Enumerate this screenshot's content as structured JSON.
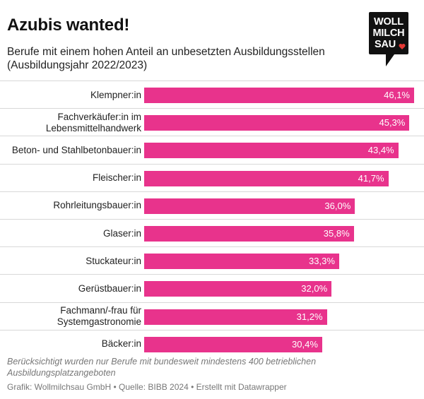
{
  "header": {
    "title": "Azubis wanted!",
    "subtitle": "Berufe mit einem hohen Anteil an unbesetzten Ausbildungsstellen (Ausbildungsjahr 2022/2023)"
  },
  "logo": {
    "line1": "WOLL",
    "line2": "MILCH",
    "line3": "SAU",
    "heart_color": "#e53935"
  },
  "colors": {
    "bar": "#e8338c",
    "bar_text": "#ffffff"
  },
  "chart_data": {
    "type": "bar",
    "orientation": "horizontal",
    "title": "Azubis wanted!",
    "subtitle": "Berufe mit einem hohen Anteil an unbesetzten Ausbildungsstellen (Ausbildungsjahr 2022/2023)",
    "categories": [
      "Klempner:in",
      "Fachverkäufer:in im Lebensmittelhandwerk",
      "Beton- und Stahlbetonbauer:in",
      "Fleischer:in",
      "Rohrleitungsbauer:in",
      "Glaser:in",
      "Stuckateur:in",
      "Gerüstbauer:in",
      "Fachmann/-frau für Systemgastronomie",
      "Bäcker:in"
    ],
    "label_lines": [
      [
        "Klempner:in"
      ],
      [
        "Fachverkäufer:in im",
        "Lebensmittelhandwerk"
      ],
      [
        "Beton- und Stahlbetonbauer:in"
      ],
      [
        "Fleischer:in"
      ],
      [
        "Rohrleitungsbauer:in"
      ],
      [
        "Glaser:in"
      ],
      [
        "Stuckateur:in"
      ],
      [
        "Gerüstbauer:in"
      ],
      [
        "Fachmann/-frau für",
        "Systemgastronomie"
      ],
      [
        "Bäcker:in"
      ]
    ],
    "values": [
      46.1,
      45.3,
      43.4,
      41.7,
      36.0,
      35.8,
      33.3,
      32.0,
      31.2,
      30.4
    ],
    "value_labels": [
      "46,1%",
      "45,3%",
      "43,4%",
      "41,7%",
      "36,0%",
      "35,8%",
      "33,3%",
      "32,0%",
      "31,2%",
      "30,4%"
    ],
    "xlim": [
      0,
      46.1
    ],
    "grid": false,
    "legend": "none"
  },
  "footer": {
    "note": "Berücksichtigt wurden nur Berufe mit bundesweit mindestens 400 betrieblichen Ausbildungsplatzangeboten",
    "credit": "Grafik: Wollmilchsau GmbH • Quelle: BIBB 2024 • Erstellt mit Datawrapper"
  }
}
